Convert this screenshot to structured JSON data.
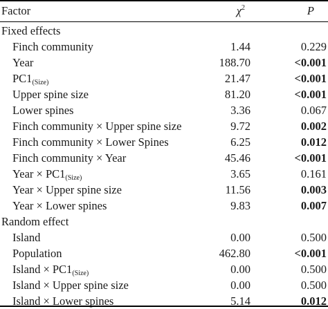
{
  "header": {
    "factor": "Factor",
    "chi_base": "χ",
    "chi_sup": "2",
    "p": "P"
  },
  "fixed_section": "Fixed effects",
  "random_section": "Random effect",
  "fixed_rows": [
    {
      "factor": "Finch community",
      "chi2": "1.44",
      "p": "0.229",
      "bold": false
    },
    {
      "factor": "Year",
      "chi2": "188.70",
      "p": "<0.001",
      "bold": true
    },
    {
      "factor": "PC1",
      "factor_sub": "(Size)",
      "chi2": "21.47",
      "p": "<0.001",
      "bold": true
    },
    {
      "factor": "Upper spine size",
      "chi2": "81.20",
      "p": "<0.001",
      "bold": true
    },
    {
      "factor": "Lower spines",
      "chi2": "3.36",
      "p": "0.067",
      "bold": false
    },
    {
      "factor": "Finch community × Upper spine size",
      "chi2": "9.72",
      "p": "0.002",
      "bold": true
    },
    {
      "factor": "Finch community × Lower Spines",
      "chi2": "6.25",
      "p": "0.012",
      "bold": true
    },
    {
      "factor": "Finch community × Year",
      "chi2": "45.46",
      "p": "<0.001",
      "bold": true
    },
    {
      "factor": "Year × PC1",
      "factor_sub": "(Size)",
      "chi2": "3.65",
      "p": "0.161",
      "bold": false
    },
    {
      "factor": "Year × Upper spine size",
      "chi2": "11.56",
      "p": "0.003",
      "bold": true
    },
    {
      "factor": "Year × Lower spines",
      "chi2": "9.83",
      "p": "0.007",
      "bold": true
    }
  ],
  "random_rows": [
    {
      "factor": "Island",
      "chi2": "0.00",
      "p": "0.500",
      "bold": false
    },
    {
      "factor": "Population",
      "chi2": "462.80",
      "p": "<0.001",
      "bold": true
    },
    {
      "factor": "Island × PC1",
      "factor_sub": "(Size)",
      "chi2": "0.00",
      "p": "0.500",
      "bold": false
    },
    {
      "factor": "Island × Upper spine size",
      "chi2": "0.00",
      "p": "0.500",
      "bold": false
    },
    {
      "factor": "Island × Lower spines",
      "chi2": "5.14",
      "p": "0.012",
      "bold": true
    }
  ]
}
